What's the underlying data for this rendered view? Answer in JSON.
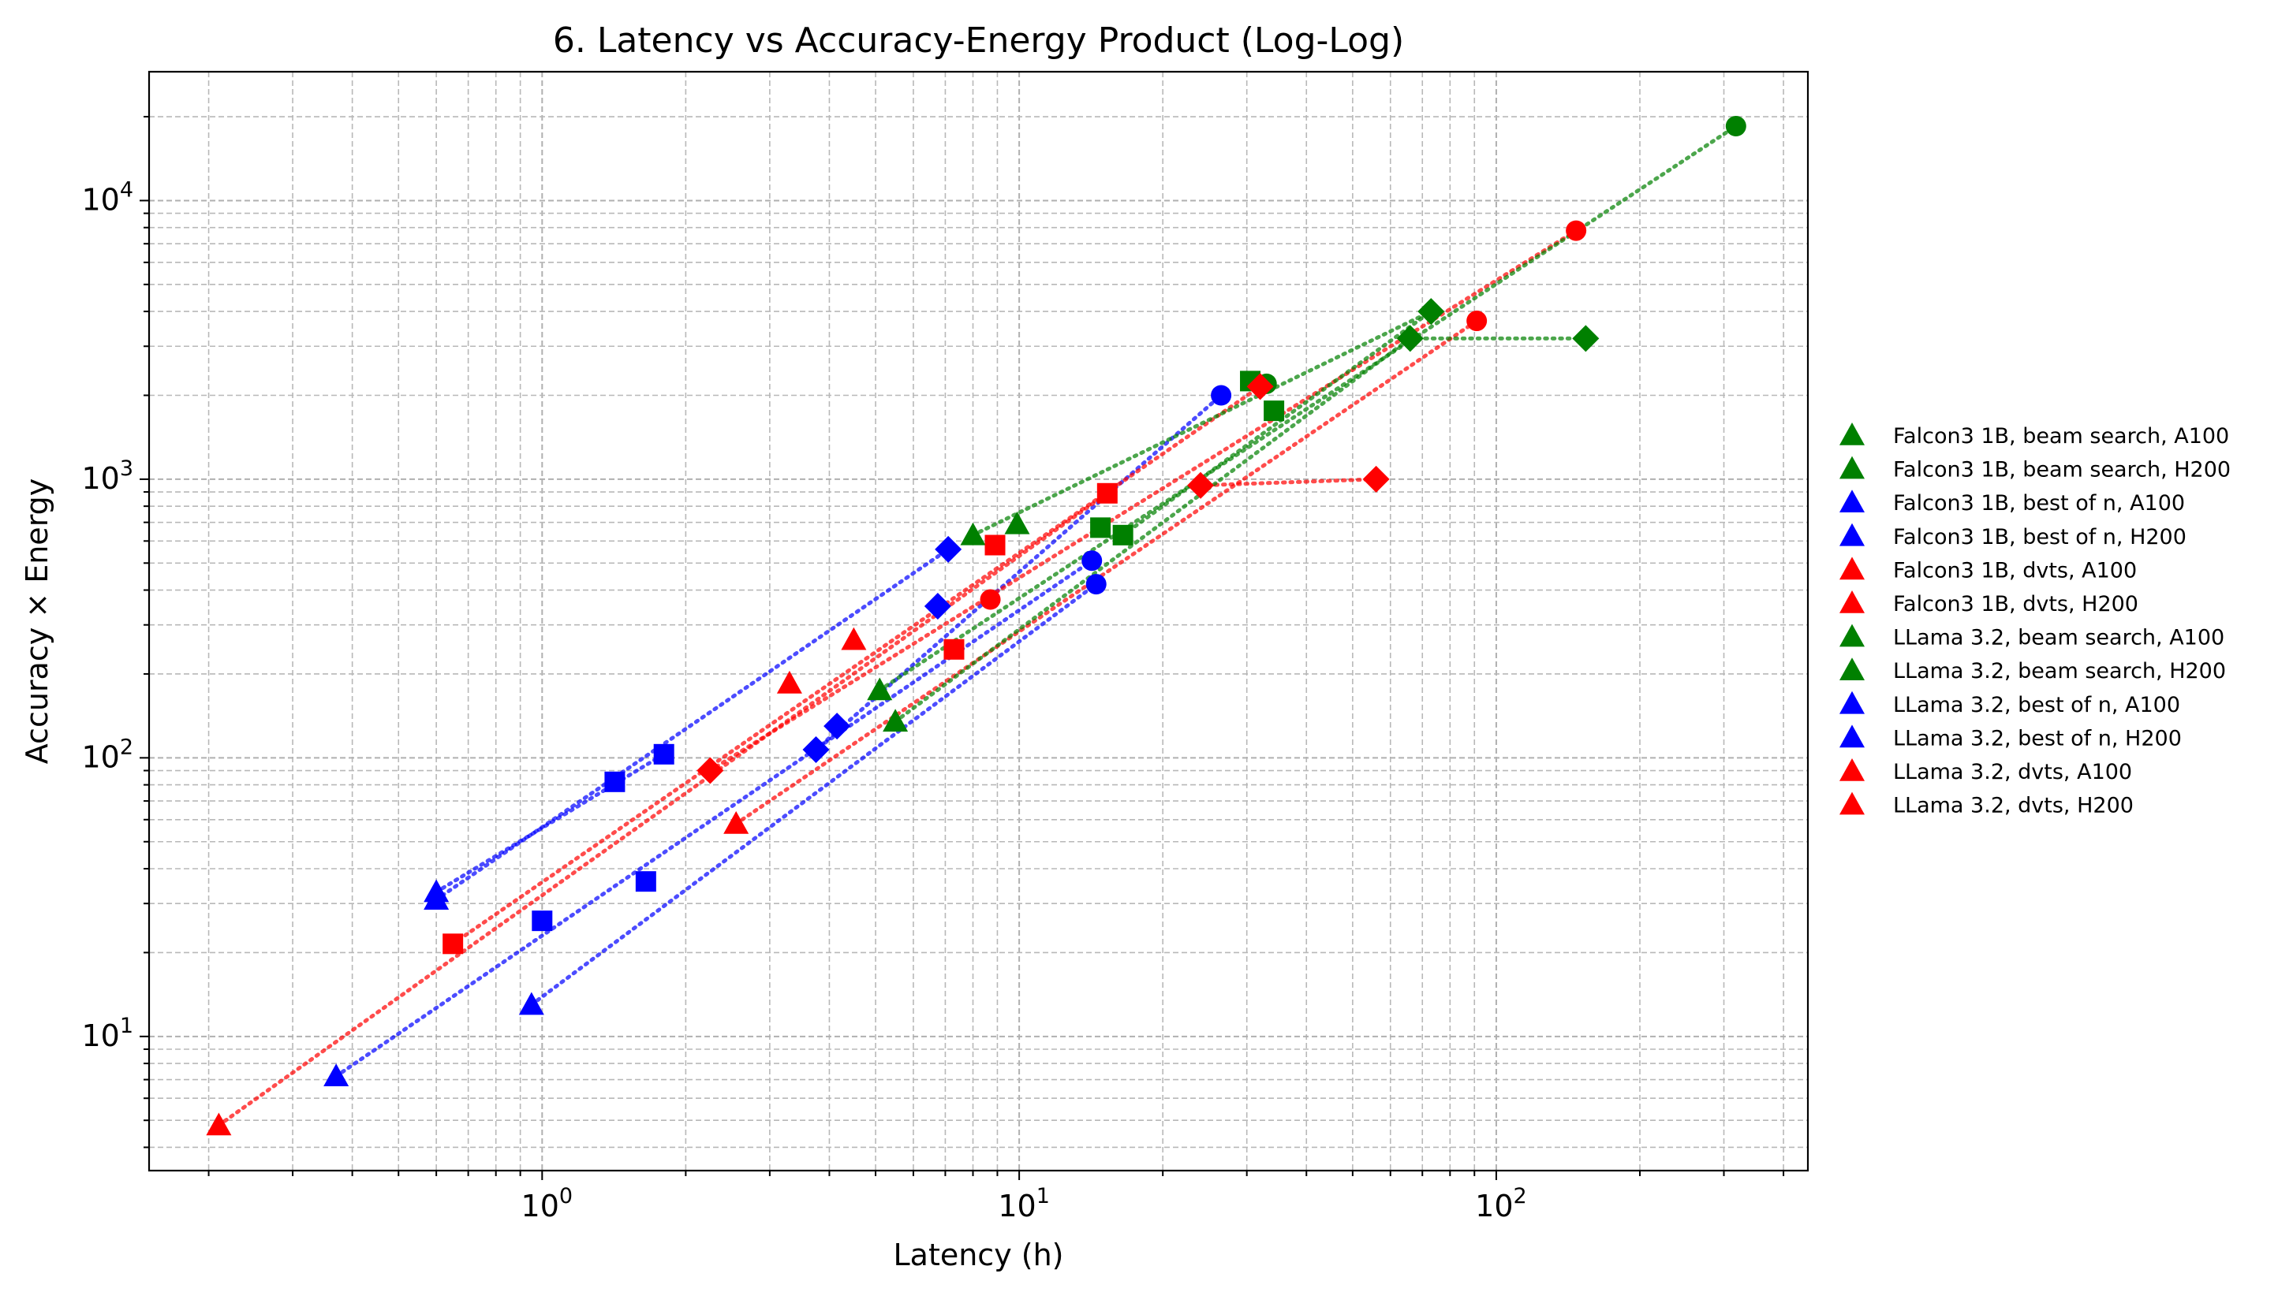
{
  "chart_data": {
    "type": "scatter",
    "title": "6. Latency vs Accuracy-Energy Product (Log-Log)",
    "xlabel": "Latency (h)",
    "ylabel": "Accuracy × Energy",
    "xscale": "log",
    "yscale": "log",
    "xlim": [
      0.15,
      450
    ],
    "ylim": [
      3.3,
      29000
    ],
    "x_ticks": [
      {
        "value": 1,
        "base": "10",
        "exp": "0"
      },
      {
        "value": 10,
        "base": "10",
        "exp": "1"
      },
      {
        "value": 100,
        "base": "10",
        "exp": "2"
      }
    ],
    "y_ticks": [
      {
        "value": 10,
        "base": "10",
        "exp": "1"
      },
      {
        "value": 100,
        "base": "10",
        "exp": "2"
      },
      {
        "value": 1000,
        "base": "10",
        "exp": "3"
      },
      {
        "value": 10000,
        "base": "10",
        "exp": "4"
      }
    ],
    "grid": true,
    "legend_position": "outside-right",
    "colors": {
      "beam": "#008000",
      "best": "#0000ff",
      "dvts": "#ff0000"
    },
    "series": [
      {
        "name": "Falcon3 1B, beam search, A100",
        "color": "#008000",
        "marker": "circle",
        "points": [
          [
            33,
            2200
          ],
          [
            318,
            18500
          ]
        ]
      },
      {
        "name": "Falcon3 1B, beam search, H200",
        "color": "#008000",
        "marker": "triangle",
        "points": [
          [
            5.1,
            175
          ],
          [
            8.0,
            630
          ],
          [
            9.9,
            690
          ]
        ]
      },
      {
        "name": "Falcon3 1B, best of n, A100",
        "color": "#0000ff",
        "marker": "circle",
        "points": [
          [
            14.2,
            510
          ],
          [
            26.5,
            2000
          ]
        ]
      },
      {
        "name": "Falcon3 1B, best of n, H200",
        "color": "#0000ff",
        "marker": "triangle",
        "points": [
          [
            0.37,
            7.2
          ],
          [
            0.6,
            33
          ],
          [
            0.95,
            13
          ]
        ]
      },
      {
        "name": "Falcon3 1B, dvts, A100",
        "color": "#ff0000",
        "marker": "circle",
        "points": [
          [
            8.7,
            370
          ],
          [
            147,
            7800
          ]
        ]
      },
      {
        "name": "Falcon3 1B, dvts, H200",
        "color": "#ff0000",
        "marker": "triangle",
        "points": [
          [
            0.21,
            4.8
          ],
          [
            3.3,
            185
          ],
          [
            4.5,
            265
          ]
        ]
      },
      {
        "name": "LLama 3.2, beam search, A100",
        "color": "#008000",
        "marker": "square",
        "points": [
          [
            14.8,
            670
          ],
          [
            16.5,
            630
          ],
          [
            30.5,
            2250
          ],
          [
            34.2,
            1760
          ]
        ]
      },
      {
        "name": "LLama 3.2, beam search, H200",
        "color": "#008000",
        "marker": "diamond",
        "points": [
          [
            66,
            3200
          ],
          [
            73,
            4000
          ],
          [
            154,
            3200
          ]
        ]
      },
      {
        "name": "LLama 3.2, best of n, A100",
        "color": "#0000ff",
        "marker": "square",
        "points": [
          [
            1.0,
            26
          ],
          [
            1.42,
            82
          ],
          [
            1.65,
            36
          ],
          [
            1.8,
            103
          ]
        ]
      },
      {
        "name": "LLama 3.2, best of n, H200",
        "color": "#0000ff",
        "marker": "diamond",
        "points": [
          [
            3.75,
            107
          ],
          [
            4.15,
            130
          ],
          [
            6.75,
            350
          ],
          [
            7.1,
            560
          ]
        ]
      },
      {
        "name": "LLama 3.2, dvts, A100",
        "color": "#ff0000",
        "marker": "square",
        "points": [
          [
            0.65,
            21.5
          ],
          [
            7.3,
            245
          ],
          [
            8.9,
            580
          ],
          [
            15.3,
            890
          ]
        ]
      },
      {
        "name": "LLama 3.2, dvts, H200",
        "color": "#ff0000",
        "marker": "diamond",
        "points": [
          [
            2.25,
            90
          ],
          [
            24,
            950
          ],
          [
            32,
            2150
          ],
          [
            56,
            1000
          ]
        ]
      }
    ],
    "legend_items": [
      {
        "label": "Falcon3 1B, beam search, A100",
        "color": "#008000"
      },
      {
        "label": "Falcon3 1B, beam search, H200",
        "color": "#008000"
      },
      {
        "label": "Falcon3 1B, best of n, A100",
        "color": "#0000ff"
      },
      {
        "label": "Falcon3 1B, best of n, H200",
        "color": "#0000ff"
      },
      {
        "label": "Falcon3 1B, dvts, A100",
        "color": "#ff0000"
      },
      {
        "label": "Falcon3 1B, dvts, H200",
        "color": "#ff0000"
      },
      {
        "label": "LLama 3.2, beam search, A100",
        "color": "#008000"
      },
      {
        "label": "LLama 3.2, beam search, H200",
        "color": "#008000"
      },
      {
        "label": "LLama 3.2, best of n, A100",
        "color": "#0000ff"
      },
      {
        "label": "LLama 3.2, best of n, H200",
        "color": "#0000ff"
      },
      {
        "label": "LLama 3.2, dvts, A100",
        "color": "#ff0000"
      },
      {
        "label": "LLama 3.2, dvts, H200",
        "color": "#ff0000"
      }
    ],
    "trend_lines": [
      {
        "color": "#0000ff",
        "from": [
          0.6,
          31
        ],
        "to": [
          7.1,
          560
        ]
      },
      {
        "color": "#0000ff",
        "from": [
          0.6,
          33
        ],
        "to": [
          1.8,
          103
        ]
      },
      {
        "color": "#0000ff",
        "from": [
          0.37,
          7.2
        ],
        "to": [
          14.2,
          510
        ]
      },
      {
        "color": "#0000ff",
        "from": [
          0.95,
          13
        ],
        "to": [
          14.5,
          420
        ]
      },
      {
        "color": "#0000ff",
        "from": [
          3.75,
          107
        ],
        "to": [
          26.5,
          2000
        ]
      },
      {
        "color": "#ff0000",
        "from": [
          0.21,
          4.8
        ],
        "to": [
          15.3,
          890
        ]
      },
      {
        "color": "#ff0000",
        "from": [
          0.65,
          21.5
        ],
        "to": [
          32,
          2150
        ]
      },
      {
        "color": "#ff0000",
        "from": [
          2.25,
          90
        ],
        "to": [
          147,
          7800
        ]
      },
      {
        "color": "#ff0000",
        "from": [
          2.55,
          58
        ],
        "to": [
          91,
          3700
        ]
      },
      {
        "color": "#ff0000",
        "from": [
          24,
          950
        ],
        "to": [
          56,
          1000
        ]
      },
      {
        "color": "#008000",
        "from": [
          5.1,
          175
        ],
        "to": [
          318,
          18500
        ]
      },
      {
        "color": "#008000",
        "from": [
          5.5,
          135
        ],
        "to": [
          66,
          3200
        ]
      },
      {
        "color": "#008000",
        "from": [
          8.0,
          630
        ],
        "to": [
          73,
          4000
        ]
      },
      {
        "color": "#008000",
        "from": [
          66,
          3200
        ],
        "to": [
          154,
          3200
        ]
      },
      {
        "color": "#008000",
        "from": [
          16.5,
          630
        ],
        "to": [
          73,
          4000
        ]
      }
    ],
    "extra_points": [
      {
        "color": "#0000ff",
        "marker": "circle",
        "x": 14.5,
        "y": 420
      },
      {
        "color": "#0000ff",
        "marker": "triangle",
        "x": 0.6,
        "y": 31
      },
      {
        "color": "#ff0000",
        "marker": "circle",
        "x": 91,
        "y": 3700
      },
      {
        "color": "#ff0000",
        "marker": "triangle",
        "x": 2.55,
        "y": 58
      },
      {
        "color": "#008000",
        "marker": "triangle",
        "x": 5.5,
        "y": 135
      }
    ]
  }
}
